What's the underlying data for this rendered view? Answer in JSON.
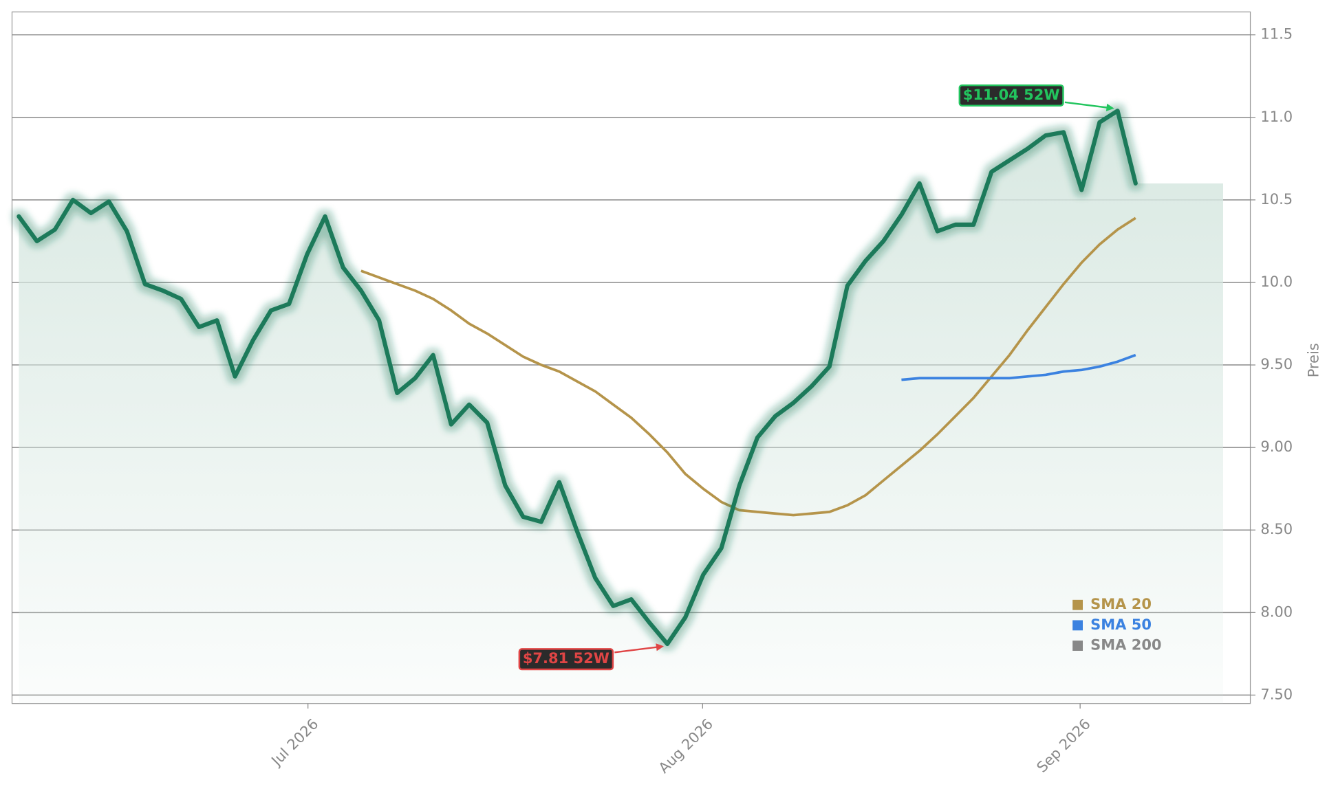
{
  "chart_data": {
    "type": "line",
    "ylabel": "Preis",
    "xlim": [
      -0.38,
      68.37
    ],
    "xticks": [
      {
        "value": 16.05,
        "label": "Jul 2026"
      },
      {
        "value": 37.96,
        "label": "Aug 2026"
      },
      {
        "value": 58.92,
        "label": "Sep 2026"
      }
    ],
    "ylim": [
      7.449,
      11.639
    ],
    "yticks": [
      {
        "value": 7.5,
        "label": "7.50"
      },
      {
        "value": 8.0,
        "label": "8.00"
      },
      {
        "value": 8.5,
        "label": "8.50"
      },
      {
        "value": 9.0,
        "label": "9.00"
      },
      {
        "value": 9.5,
        "label": "9.50"
      },
      {
        "value": 10.0,
        "label": "10.0"
      },
      {
        "value": 10.5,
        "label": "10.5"
      },
      {
        "value": 11.0,
        "label": "11.0"
      },
      {
        "value": 11.5,
        "label": "11.5"
      }
    ],
    "grid": true,
    "price": {
      "color": "#1b7a5a",
      "values": [
        10.4,
        10.25,
        10.32,
        10.5,
        10.42,
        10.49,
        10.31,
        9.99,
        9.95,
        9.9,
        9.73,
        9.77,
        9.43,
        9.65,
        9.83,
        9.87,
        10.17,
        10.4,
        10.09,
        9.95,
        9.77,
        9.33,
        9.42,
        9.56,
        9.14,
        9.26,
        9.15,
        8.77,
        8.58,
        8.55,
        8.79,
        8.49,
        8.21,
        8.04,
        8.08,
        7.94,
        7.81,
        7.97,
        8.23,
        8.39,
        8.77,
        9.06,
        9.19,
        9.27,
        9.37,
        9.49,
        9.98,
        10.13,
        10.25,
        10.41,
        10.6,
        10.31,
        10.35,
        10.35,
        10.67,
        10.74,
        10.81,
        10.89,
        10.91,
        10.56,
        10.97,
        11.04,
        10.6
      ]
    },
    "series": [
      {
        "name": "SMA 20",
        "color": "#b5944a",
        "values": [
          null,
          null,
          null,
          null,
          null,
          null,
          null,
          null,
          null,
          null,
          null,
          null,
          null,
          null,
          null,
          null,
          null,
          null,
          null,
          10.07,
          10.03,
          9.99,
          9.95,
          9.9,
          9.83,
          9.75,
          9.69,
          9.62,
          9.55,
          9.5,
          9.46,
          9.4,
          9.34,
          9.26,
          9.18,
          9.08,
          8.97,
          8.84,
          8.75,
          8.67,
          8.62,
          8.61,
          8.6,
          8.59,
          8.6,
          8.61,
          8.65,
          8.71,
          8.8,
          8.89,
          8.98,
          9.08,
          9.19,
          9.3,
          9.43,
          9.56,
          9.71,
          9.85,
          9.99,
          10.12,
          10.23,
          10.32,
          10.39
        ]
      },
      {
        "name": "SMA 50",
        "color": "#3b82e0",
        "values": [
          null,
          null,
          null,
          null,
          null,
          null,
          null,
          null,
          null,
          null,
          null,
          null,
          null,
          null,
          null,
          null,
          null,
          null,
          null,
          null,
          null,
          null,
          null,
          null,
          null,
          null,
          null,
          null,
          null,
          null,
          null,
          null,
          null,
          null,
          null,
          null,
          null,
          null,
          null,
          null,
          null,
          null,
          null,
          null,
          null,
          null,
          null,
          null,
          null,
          9.41,
          9.42,
          9.42,
          9.42,
          9.42,
          9.42,
          9.42,
          9.43,
          9.44,
          9.46,
          9.47,
          9.49,
          9.52,
          9.56
        ]
      },
      {
        "name": "SMA 200",
        "color": "#888888",
        "values": [
          null,
          null,
          null,
          null,
          null,
          null,
          null,
          null,
          null,
          null,
          null,
          null,
          null,
          null,
          null,
          null,
          null,
          null,
          null,
          null,
          null,
          null,
          null,
          null,
          null,
          null,
          null,
          null,
          null,
          null,
          null,
          null,
          null,
          null,
          null,
          null,
          null,
          null,
          null,
          null,
          null,
          null,
          null,
          null,
          null,
          null,
          null,
          null,
          null,
          null,
          null,
          null,
          null,
          null,
          null,
          null,
          null,
          null,
          null,
          null,
          null,
          null,
          null
        ]
      }
    ],
    "annotations": [
      {
        "text": "$11.04 52W",
        "x": 61,
        "y": 11.04,
        "color": "#22c55e",
        "side": "above"
      },
      {
        "text": "$7.81 52W",
        "x": 36,
        "y": 7.81,
        "color": "#e04545",
        "side": "below"
      }
    ]
  }
}
